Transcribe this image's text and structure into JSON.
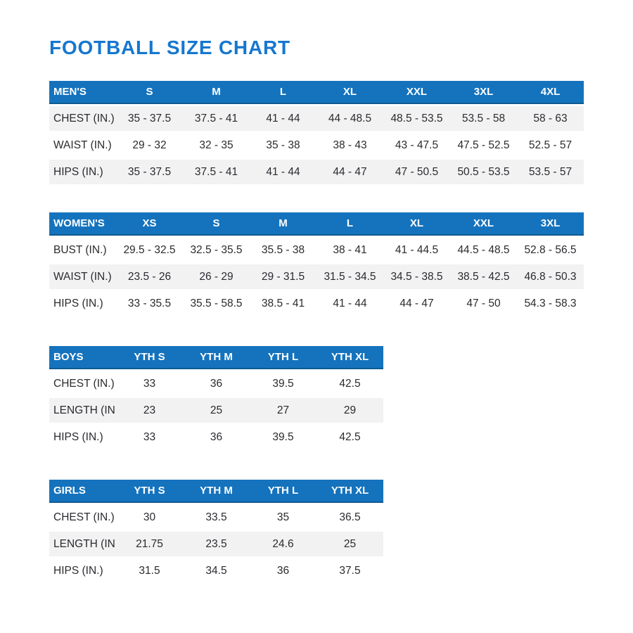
{
  "page": {
    "title": "FOOTBALL SIZE CHART"
  },
  "colors": {
    "title_text": "#1577d0",
    "header_bg": "#1573bd",
    "header_text": "#ffffff",
    "stripe_row_bg": "#f2f2f3",
    "body_text": "#2b2a2f"
  },
  "tables": {
    "mens": {
      "header": [
        "MEN'S",
        "S",
        "M",
        "L",
        "XL",
        "XXL",
        "3XL",
        "4XL"
      ],
      "rows": [
        [
          "CHEST (IN.)",
          "35 - 37.5",
          "37.5 - 41",
          "41 - 44",
          "44 - 48.5",
          "48.5 - 53.5",
          "53.5 - 58",
          "58 - 63"
        ],
        [
          "WAIST (IN.)",
          "29 - 32",
          "32 - 35",
          "35 - 38",
          "38 - 43",
          "43 - 47.5",
          "47.5 - 52.5",
          "52.5 - 57"
        ],
        [
          "HIPS (IN.)",
          "35 - 37.5",
          "37.5 - 41",
          "41 - 44",
          "44 - 47",
          "47 - 50.5",
          "50.5 - 53.5",
          "53.5 - 57"
        ]
      ]
    },
    "womens": {
      "header": [
        "WOMEN'S",
        "XS",
        "S",
        "M",
        "L",
        "XL",
        "XXL",
        "3XL"
      ],
      "rows": [
        [
          "BUST (IN.)",
          "29.5 - 32.5",
          "32.5 - 35.5",
          "35.5 - 38",
          "38 - 41",
          "41 - 44.5",
          "44.5 - 48.5",
          "52.8 - 56.5"
        ],
        [
          "WAIST (IN.)",
          "23.5 - 26",
          "26 - 29",
          "29 - 31.5",
          "31.5 - 34.5",
          "34.5 - 38.5",
          "38.5 - 42.5",
          "46.8 - 50.3"
        ],
        [
          "HIPS (IN.)",
          "33 - 35.5",
          "35.5 - 58.5",
          "38.5 - 41",
          "41 - 44",
          "44 - 47",
          "47 - 50",
          "54.3 - 58.3"
        ]
      ]
    },
    "boys": {
      "header": [
        "BOYS",
        "YTH S",
        "YTH M",
        "YTH L",
        "YTH XL"
      ],
      "rows": [
        [
          "CHEST (IN.)",
          "33",
          "36",
          "39.5",
          "42.5"
        ],
        [
          "LENGTH (IN.)",
          "23",
          "25",
          "27",
          "29"
        ],
        [
          "HIPS (IN.)",
          "33",
          "36",
          "39.5",
          "42.5"
        ]
      ]
    },
    "girls": {
      "header": [
        "GIRLS",
        "YTH S",
        "YTH M",
        "YTH L",
        "YTH XL"
      ],
      "rows": [
        [
          "CHEST (IN.)",
          "30",
          "33.5",
          "35",
          "36.5"
        ],
        [
          "LENGTH (IN.)",
          "21.75",
          "23.5",
          "24.6",
          "25"
        ],
        [
          "HIPS (IN.)",
          "31.5",
          "34.5",
          "36",
          "37.5"
        ]
      ]
    }
  }
}
